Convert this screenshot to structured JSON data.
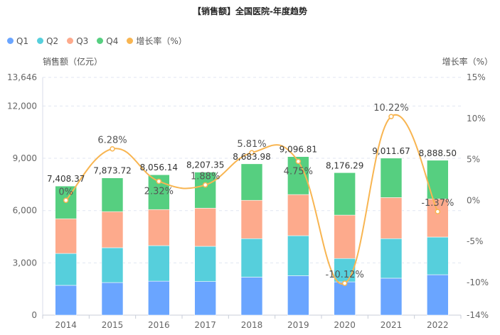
{
  "chart_data": {
    "type": "bar",
    "title": "【销售额】全国医院-年度趋势",
    "categories": [
      "2014",
      "2015",
      "2016",
      "2017",
      "2018",
      "2019",
      "2020",
      "2021",
      "2022"
    ],
    "stacked": true,
    "series": [
      {
        "name": "Q1",
        "color": "#6aa5ff",
        "values": [
          1710,
          1870,
          1950,
          1930,
          2180,
          2260,
          1910,
          2120,
          2320
        ]
      },
      {
        "name": "Q2",
        "color": "#56cfdc",
        "values": [
          1830,
          2000,
          2040,
          2020,
          2210,
          2300,
          1340,
          2270,
          2160
        ]
      },
      {
        "name": "Q3",
        "color": "#fdaa8c",
        "values": [
          1990,
          2070,
          2070,
          2190,
          2200,
          2360,
          2490,
          2360,
          2190
        ]
      },
      {
        "name": "Q4",
        "color": "#56cf80",
        "values": [
          1878.37,
          1933.72,
          1996.14,
          2067.35,
          2093.98,
          2176.81,
          2436.29,
          2261.67,
          2218.5
        ]
      }
    ],
    "totals": [
      7408.37,
      7873.72,
      8056.14,
      8207.35,
      8683.98,
      9096.81,
      8176.29,
      9011.67,
      8888.5
    ],
    "total_labels": [
      "7,408.37",
      "7,873.72",
      "8,056.14",
      "8,207.35",
      "8,683.98",
      "9,096.81",
      "8,176.29",
      "9,011.67",
      "8,888.50"
    ],
    "line_series": {
      "name": "增长率（%）",
      "color": "#f8b551",
      "values": [
        0,
        6.28,
        2.32,
        1.88,
        5.81,
        4.75,
        -10.12,
        10.22,
        -1.37
      ],
      "labels": [
        "0%",
        "6.28%",
        "2.32%",
        "1.88%",
        "5.81%",
        "4.75%",
        "-10.12%",
        "10.22%",
        "-1.37%"
      ],
      "smooth": true
    },
    "ylabel": "销售额（亿元）",
    "ylabel_right": "增长率（%）",
    "ylim": [
      0,
      13646
    ],
    "ylim_right": [
      -14,
      15
    ],
    "yticks": [
      0,
      3000,
      6000,
      9000,
      12000,
      13646
    ],
    "ytick_labels": [
      "0",
      "3,000",
      "6,000",
      "9,000",
      "12,000",
      "13,646"
    ],
    "yticks_right": [
      -14,
      -10,
      -5,
      0,
      5,
      10,
      15
    ],
    "ytick_labels_right": [
      "-14%",
      "-10%",
      "-5%",
      "0%",
      "5%",
      "10%",
      "15%"
    ],
    "grid": true,
    "legend_position": "top-left",
    "legend": [
      "Q1",
      "Q2",
      "Q3",
      "Q4",
      "增长率（%）"
    ]
  }
}
